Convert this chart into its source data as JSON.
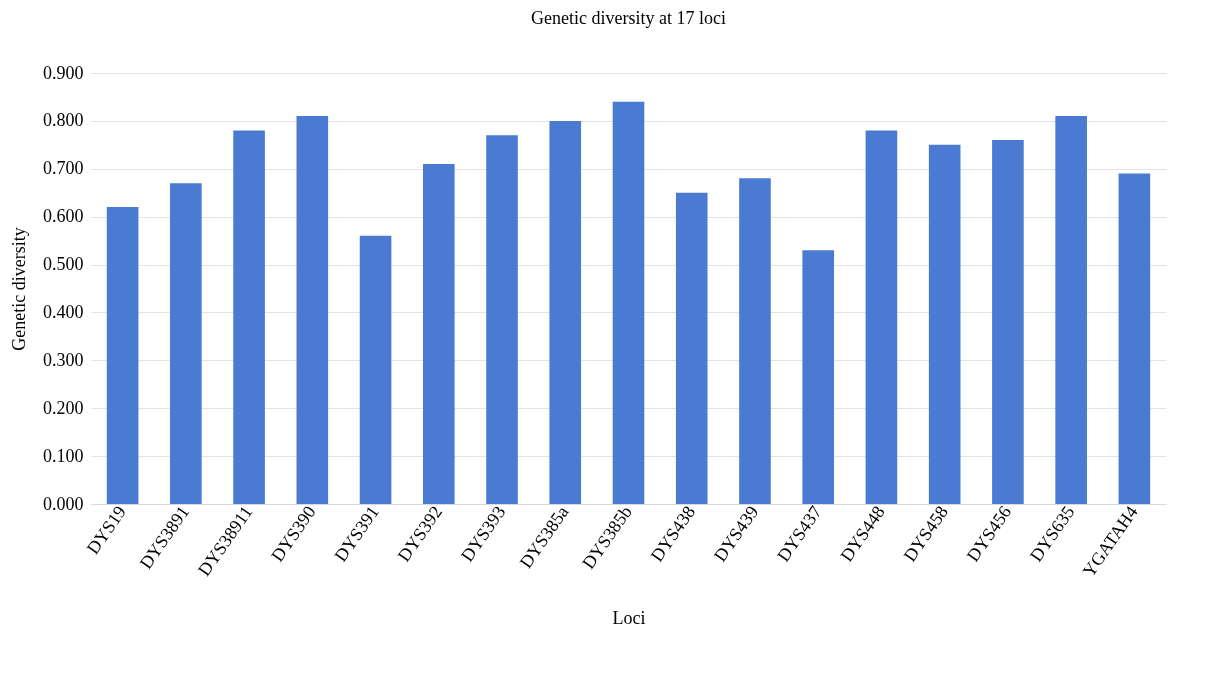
{
  "chart_data": {
    "type": "bar",
    "title": "Genetic diversity at 17 loci",
    "xlabel": "Loci",
    "ylabel": "Genetic diversity",
    "categories": [
      "DYS19",
      "DYS3891",
      "DYS38911",
      "DYS390",
      "DYS391",
      "DYS392",
      "DYS393",
      "DYS385a",
      "DYS385b",
      "DYS438",
      "DYS439",
      "DYS437",
      "DYS448",
      "DYS458",
      "DYS456",
      "DYS635",
      "YGATAH4"
    ],
    "values": [
      0.62,
      0.67,
      0.78,
      0.81,
      0.56,
      0.71,
      0.77,
      0.8,
      0.84,
      0.65,
      0.68,
      0.53,
      0.78,
      0.75,
      0.76,
      0.81,
      0.69
    ],
    "color": "#4a7ad2",
    "ylim": [
      0,
      0.9
    ],
    "yticks": [
      {
        "value": 0,
        "label": "0.000"
      },
      {
        "value": 0.1,
        "label": "0.100"
      },
      {
        "value": 0.2,
        "label": "0.200"
      },
      {
        "value": 0.3,
        "label": "0.300"
      },
      {
        "value": 0.4,
        "label": "0.400"
      },
      {
        "value": 0.5,
        "label": "0.500"
      },
      {
        "value": 0.6,
        "label": "0.600"
      },
      {
        "value": 0.7,
        "label": "0.700"
      },
      {
        "value": 0.8,
        "label": "0.800"
      },
      {
        "value": 0.9,
        "label": "0.900"
      }
    ],
    "grid": "y"
  }
}
